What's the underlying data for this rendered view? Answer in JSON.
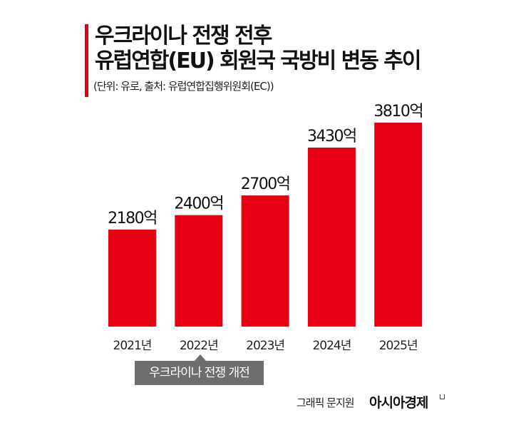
{
  "header": {
    "title_line1": "우크라이나 전쟁 전후",
    "title_line2": "유럽연합(EU) 회원국 국방비 변동 추이",
    "subtitle": "(단위: 유로, 출처: 유럽연합집행위원회(EC))"
  },
  "chart_data": {
    "type": "bar",
    "categories": [
      "2021년",
      "2022년",
      "2023년",
      "2024년",
      "2025년"
    ],
    "values": [
      2180,
      2400,
      2700,
      3430,
      3810
    ],
    "data_labels": [
      "2180억",
      "2400억",
      "2700억",
      "3430억",
      "3810억"
    ],
    "unit": "억 유로",
    "ylim": [
      700,
      3810
    ],
    "grid": false,
    "bar_color": "#e60012",
    "annotation": {
      "category": "2022년",
      "text": "우크라이나 전쟁 개전"
    }
  },
  "footer": {
    "credit": "그래픽 문지원",
    "brand": "아시아경제"
  }
}
